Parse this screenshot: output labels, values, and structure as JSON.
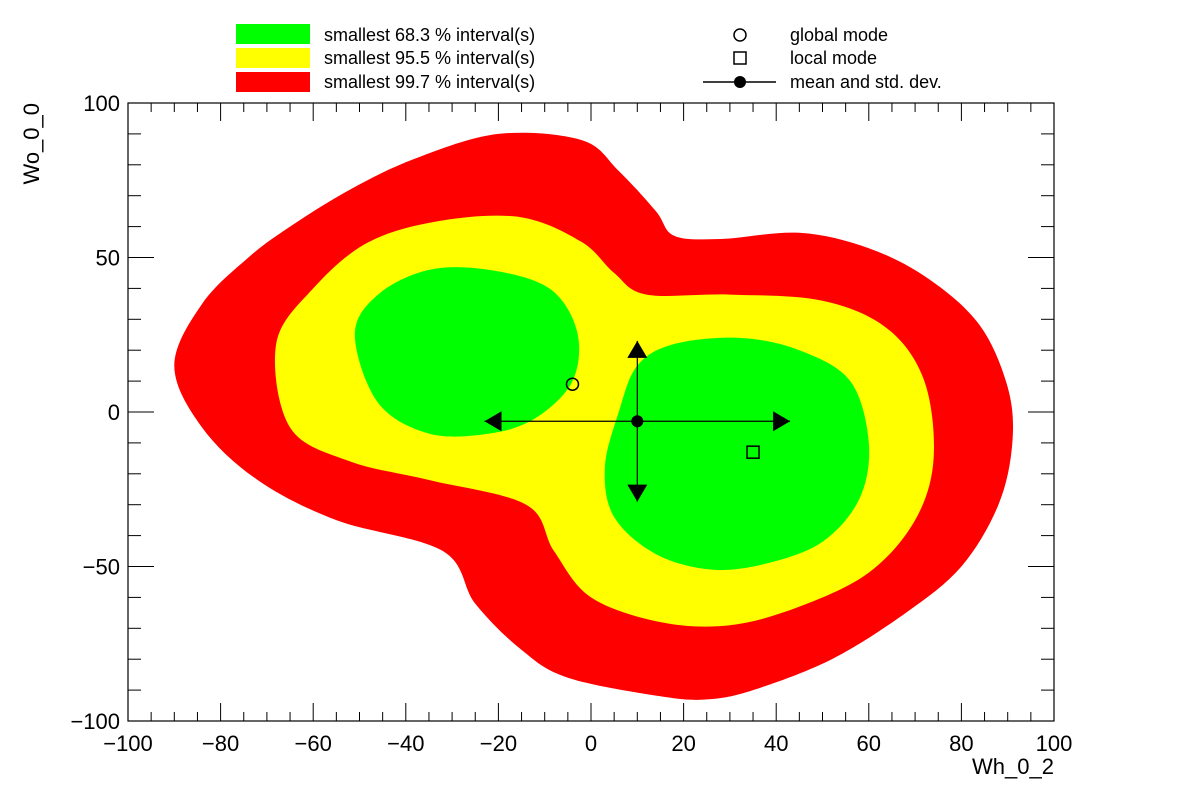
{
  "chart_data": {
    "type": "contour",
    "xlabel": "Wh_0_2",
    "ylabel": "Wo_0_0",
    "xlim": [
      -100,
      100
    ],
    "ylim": [
      -100,
      100
    ],
    "x_ticks": [
      -100,
      -80,
      -60,
      -40,
      -20,
      0,
      20,
      40,
      60,
      80,
      100
    ],
    "x_tick_labels": [
      "−100",
      "−80",
      "−60",
      "−40",
      "−20",
      "0",
      "20",
      "40",
      "60",
      "80",
      "100"
    ],
    "y_ticks": [
      -100,
      -50,
      0,
      50,
      100
    ],
    "y_tick_labels": [
      "−100",
      "−50",
      "0",
      "50",
      "100"
    ],
    "grid": false,
    "legend_position": "top",
    "colors": {
      "interval_68": "#00ff00",
      "interval_95": "#ffff00",
      "interval_99": "#ff0000"
    },
    "legend": {
      "interval_68": "smallest 68.3 % interval(s)",
      "interval_95": "smallest 95.5 % interval(s)",
      "interval_99": "smallest 99.7 % interval(s)",
      "global_mode": "global mode",
      "local_mode": "local mode",
      "mean": "mean and std. dev."
    },
    "regions": [
      {
        "level": "99.7",
        "color": "#ff0000",
        "outline": [
          [
            -90,
            15
          ],
          [
            -84,
            35
          ],
          [
            -74,
            50
          ],
          [
            -65,
            60
          ],
          [
            -52,
            72
          ],
          [
            -38,
            82
          ],
          [
            -20,
            90
          ],
          [
            -2,
            88
          ],
          [
            6,
            78
          ],
          [
            14,
            65
          ],
          [
            18,
            57
          ],
          [
            28,
            56
          ],
          [
            45,
            58
          ],
          [
            60,
            53
          ],
          [
            73,
            43
          ],
          [
            84,
            28
          ],
          [
            90,
            8
          ],
          [
            91,
            -10
          ],
          [
            88,
            -30
          ],
          [
            80,
            -50
          ],
          [
            68,
            -65
          ],
          [
            52,
            -80
          ],
          [
            35,
            -90
          ],
          [
            25,
            -93
          ],
          [
            15,
            -92
          ],
          [
            -5,
            -86
          ],
          [
            -15,
            -77
          ],
          [
            -25,
            -62
          ],
          [
            -32,
            -45
          ],
          [
            -55,
            -35
          ],
          [
            -72,
            -22
          ],
          [
            -84,
            -5
          ]
        ]
      },
      {
        "level": "95.5",
        "color": "#ffff00",
        "outline": [
          [
            -68,
            22
          ],
          [
            -60,
            40
          ],
          [
            -48,
            55
          ],
          [
            -32,
            62
          ],
          [
            -15,
            63
          ],
          [
            -2,
            55
          ],
          [
            5,
            45
          ],
          [
            12,
            38
          ],
          [
            30,
            38
          ],
          [
            50,
            36
          ],
          [
            64,
            27
          ],
          [
            72,
            10
          ],
          [
            74,
            -15
          ],
          [
            70,
            -35
          ],
          [
            60,
            -52
          ],
          [
            45,
            -63
          ],
          [
            30,
            -69
          ],
          [
            15,
            -68
          ],
          [
            0,
            -60
          ],
          [
            -8,
            -45
          ],
          [
            -14,
            -30
          ],
          [
            -35,
            -22
          ],
          [
            -52,
            -16
          ],
          [
            -65,
            -5
          ]
        ]
      },
      {
        "level": "68.3",
        "color": "#00ff00",
        "outline": [
          [
            -51,
            25
          ],
          [
            -46,
            38
          ],
          [
            -35,
            46
          ],
          [
            -22,
            46
          ],
          [
            -9,
            40
          ],
          [
            -3,
            26
          ],
          [
            -4,
            10
          ],
          [
            -12,
            -2
          ],
          [
            -22,
            -7
          ],
          [
            -35,
            -7
          ],
          [
            -46,
            3
          ]
        ]
      },
      {
        "level": "68.3",
        "color": "#00ff00",
        "outline": [
          [
            10,
            15
          ],
          [
            18,
            22
          ],
          [
            32,
            24
          ],
          [
            45,
            20
          ],
          [
            56,
            10
          ],
          [
            60,
            -10
          ],
          [
            58,
            -28
          ],
          [
            50,
            -42
          ],
          [
            38,
            -49
          ],
          [
            26,
            -51
          ],
          [
            14,
            -46
          ],
          [
            5,
            -34
          ],
          [
            3,
            -18
          ],
          [
            6,
            0
          ]
        ]
      }
    ],
    "global_mode": {
      "x": -4,
      "y": 9
    },
    "local_mode": {
      "x": 35,
      "y": -13
    },
    "mean": {
      "x": 10,
      "y": -3
    },
    "std_dev": {
      "x": 33,
      "y": 26
    }
  }
}
